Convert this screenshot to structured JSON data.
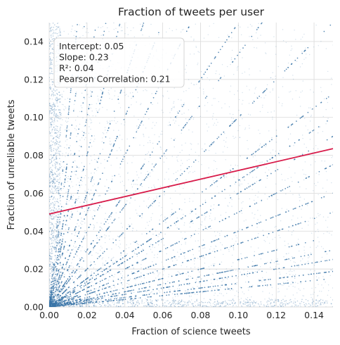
{
  "chart_data": {
    "type": "scatter",
    "title": "Fraction of tweets per user",
    "xlabel": "Fraction of science tweets",
    "ylabel": "Fraction of unreliable tweets",
    "xlim": [
      0,
      0.15
    ],
    "ylim": [
      0,
      0.15
    ],
    "xticks": [
      "0.00",
      "0.02",
      "0.04",
      "0.06",
      "0.08",
      "0.10",
      "0.12",
      "0.14"
    ],
    "yticks": [
      "0.00",
      "0.02",
      "0.04",
      "0.06",
      "0.08",
      "0.10",
      "0.12",
      "0.14"
    ],
    "grid": true,
    "regression": {
      "intercept": 0.05,
      "slope": 0.23,
      "line": {
        "x": [
          0,
          0.15
        ],
        "y": [
          0.049,
          0.0835
        ]
      }
    },
    "stats_box": {
      "lines": [
        "Intercept: 0.05",
        "Slope: 0.23",
        "R²: 0.04",
        "Pearson Correlation: 0.21"
      ],
      "placement": "top-left"
    },
    "scatter_description": {
      "pattern": "rays of rational ratios a/b from origin plus diffuse cloud",
      "point_color": "#3b76a8",
      "line_color": "#d81b4a"
    }
  }
}
